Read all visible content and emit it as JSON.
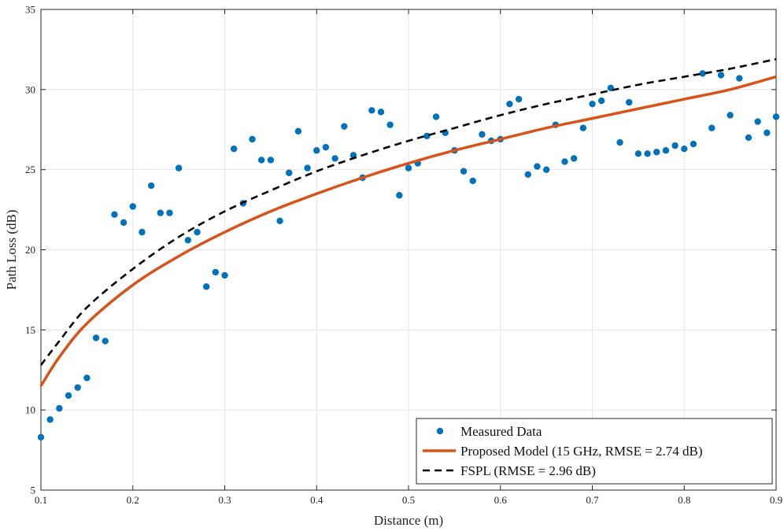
{
  "chart_data": {
    "type": "scatter",
    "title": "",
    "xlabel": "Distance (m)",
    "ylabel": "Path Loss (dB)",
    "xlim": [
      0.1,
      0.9
    ],
    "ylim": [
      5,
      35
    ],
    "grid": true,
    "xticks": [
      0.1,
      0.2,
      0.3,
      0.4,
      0.5,
      0.6,
      0.7,
      0.8,
      0.9
    ],
    "xtick_labels": [
      "0.1",
      "0.2",
      "0.3",
      "0.4",
      "0.5",
      "0.6",
      "0.7",
      "0.8",
      "0.9"
    ],
    "yticks": [
      5,
      10,
      15,
      20,
      25,
      30,
      35
    ],
    "ytick_labels": [
      "5",
      "10",
      "15",
      "20",
      "25",
      "30",
      "35"
    ],
    "legend_position": "bottom-right",
    "colors": {
      "measured": "#0072BD",
      "proposed": "#D95319",
      "fspl": "#000000",
      "grid": "#e6e6e6",
      "axis": "#262626"
    },
    "series": [
      {
        "name": "Measured Data",
        "kind": "points",
        "x": [
          0.1,
          0.11,
          0.12,
          0.13,
          0.14,
          0.15,
          0.16,
          0.17,
          0.18,
          0.19,
          0.2,
          0.21,
          0.22,
          0.23,
          0.24,
          0.25,
          0.26,
          0.27,
          0.28,
          0.29,
          0.3,
          0.31,
          0.32,
          0.33,
          0.34,
          0.35,
          0.36,
          0.37,
          0.38,
          0.39,
          0.4,
          0.41,
          0.42,
          0.43,
          0.44,
          0.45,
          0.46,
          0.47,
          0.48,
          0.49,
          0.5,
          0.51,
          0.52,
          0.53,
          0.54,
          0.55,
          0.56,
          0.57,
          0.58,
          0.59,
          0.6,
          0.61,
          0.62,
          0.63,
          0.64,
          0.65,
          0.66,
          0.67,
          0.68,
          0.69,
          0.7,
          0.71,
          0.72,
          0.73,
          0.74,
          0.75,
          0.76,
          0.77,
          0.78,
          0.79,
          0.8,
          0.81,
          0.82,
          0.83,
          0.84,
          0.85,
          0.86,
          0.87,
          0.88,
          0.89,
          0.9
        ],
        "y": [
          8.3,
          9.4,
          10.1,
          10.9,
          11.4,
          12.0,
          14.5,
          14.3,
          22.2,
          21.7,
          22.7,
          21.1,
          24.0,
          22.3,
          22.3,
          25.1,
          20.6,
          21.1,
          17.7,
          18.6,
          18.4,
          26.3,
          22.9,
          26.9,
          25.6,
          25.6,
          21.8,
          24.8,
          27.4,
          25.1,
          26.2,
          26.4,
          25.7,
          27.7,
          25.9,
          24.5,
          28.7,
          28.6,
          27.8,
          23.4,
          25.1,
          25.4,
          27.1,
          28.3,
          27.3,
          26.2,
          24.9,
          24.3,
          27.2,
          26.8,
          26.9,
          29.1,
          29.4,
          24.7,
          25.2,
          25.0,
          27.8,
          25.5,
          25.7,
          27.6,
          29.1,
          29.3,
          30.1,
          26.7,
          29.2,
          26.0,
          26.0,
          26.1,
          26.2,
          26.5,
          26.3,
          26.6,
          31.0,
          27.6,
          30.9,
          28.4,
          30.7,
          27.0,
          28.0,
          27.3,
          28.3
        ]
      },
      {
        "name": "Proposed Model (15 GHz, RMSE = 2.74 dB)",
        "kind": "line",
        "style": "solid",
        "x": [
          0.1,
          0.12,
          0.15,
          0.2,
          0.25,
          0.3,
          0.35,
          0.4,
          0.45,
          0.5,
          0.55,
          0.6,
          0.65,
          0.7,
          0.75,
          0.8,
          0.85,
          0.9
        ],
        "y": [
          11.5,
          13.3,
          15.4,
          17.8,
          19.6,
          21.1,
          22.4,
          23.5,
          24.5,
          25.4,
          26.2,
          26.9,
          27.6,
          28.2,
          28.8,
          29.4,
          30.0,
          30.8
        ]
      },
      {
        "name": "FSPL (RMSE = 2.96 dB)",
        "kind": "line",
        "style": "dashed",
        "x": [
          0.1,
          0.12,
          0.15,
          0.2,
          0.25,
          0.3,
          0.35,
          0.4,
          0.45,
          0.5,
          0.55,
          0.6,
          0.65,
          0.7,
          0.75,
          0.8,
          0.85,
          0.9
        ],
        "y": [
          12.8,
          14.3,
          16.4,
          18.8,
          20.8,
          22.4,
          23.7,
          24.9,
          25.9,
          26.8,
          27.6,
          28.4,
          29.1,
          29.7,
          30.3,
          30.8,
          31.3,
          31.9
        ]
      }
    ]
  }
}
